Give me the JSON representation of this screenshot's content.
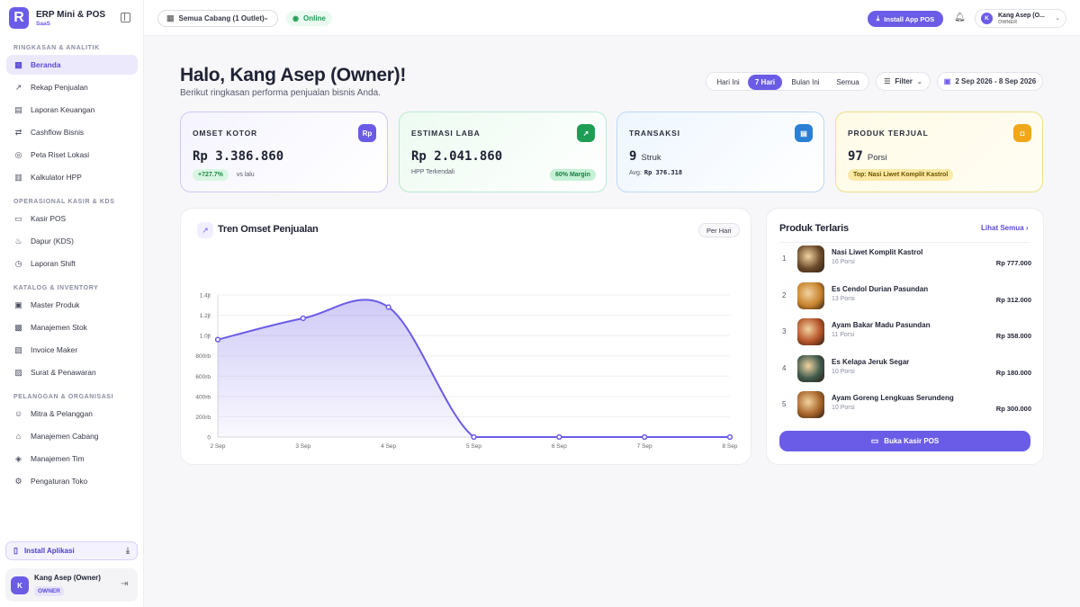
{
  "brand": {
    "name": "ERP Mini & POS",
    "sub": "SaaS",
    "logo_letter": "R"
  },
  "sidebar": {
    "sections": [
      {
        "title": "RINGKASAN & ANALITIK",
        "items": [
          {
            "label": "Beranda",
            "icon": "grid-icon",
            "active": true
          },
          {
            "label": "Rekap Penjualan",
            "icon": "trend-icon"
          },
          {
            "label": "Laporan Keuangan",
            "icon": "file-icon"
          },
          {
            "label": "Cashflow Bisnis",
            "icon": "swap-icon"
          },
          {
            "label": "Peta Riset Lokasi",
            "icon": "pin-icon"
          },
          {
            "label": "Kalkulator HPP",
            "icon": "calculator-icon"
          }
        ]
      },
      {
        "title": "OPERASIONAL KASIR & KDS",
        "items": [
          {
            "label": "Kasir POS",
            "icon": "monitor-icon"
          },
          {
            "label": "Dapur (KDS)",
            "icon": "chef-icon"
          },
          {
            "label": "Laporan Shift",
            "icon": "clock-icon"
          }
        ]
      },
      {
        "title": "KATALOG & INVENTORY",
        "items": [
          {
            "label": "Master Produk",
            "icon": "box-icon"
          },
          {
            "label": "Manajemen Stok",
            "icon": "boxes-icon"
          },
          {
            "label": "Invoice Maker",
            "icon": "invoice-icon"
          },
          {
            "label": "Surat & Penawaran",
            "icon": "document-icon"
          }
        ]
      },
      {
        "title": "PELANGGAN & ORGANISASI",
        "items": [
          {
            "label": "Mitra & Pelanggan",
            "icon": "users-icon"
          },
          {
            "label": "Manajemen Cabang",
            "icon": "branch-icon"
          },
          {
            "label": "Manajemen Tim",
            "icon": "shield-icon"
          },
          {
            "label": "Pengaturan Toko",
            "icon": "gear-icon"
          }
        ]
      }
    ],
    "install_label": "Install Aplikasi",
    "user": {
      "initial": "K",
      "name": "Kang Asep (Owner)",
      "role": "OWNER"
    }
  },
  "topbar": {
    "branch": "Semua Cabang (1 Outlet)",
    "status": "Online",
    "install_pos": "Install App POS",
    "user": {
      "initial": "K",
      "name": "Kang Asep (O...",
      "role": "OWNER"
    }
  },
  "greeting": {
    "title": "Halo, Kang Asep (Owner)!",
    "subtitle": "Berikut ringkasan performa penjualan bisnis Anda."
  },
  "range_tabs": [
    {
      "label": "Hari Ini",
      "active": false
    },
    {
      "label": "7 Hari",
      "active": true
    },
    {
      "label": "Bulan Ini",
      "active": false
    },
    {
      "label": "Semua",
      "active": false
    }
  ],
  "filter_label": "Filter",
  "date_range": "2 Sep 2026 - 8 Sep 2026",
  "kpis": {
    "omset": {
      "label": "OMSET KOTOR",
      "icon_text": "Rp",
      "value": "Rp 3.386.860",
      "change": "+727.7%",
      "change_note": "vs lalu"
    },
    "laba": {
      "label": "ESTIMASI LABA",
      "value": "Rp 2.041.860",
      "note": "HPP Terkendali",
      "margin": "60% Margin"
    },
    "transaksi": {
      "label": "TRANSAKSI",
      "value": "9",
      "unit": "Struk",
      "avg_label": "Avg:",
      "avg_value": "Rp 376.318"
    },
    "produk": {
      "label": "PRODUK TERJUAL",
      "value": "97",
      "unit": "Porsi",
      "top": "Top: Nasi Liwet Komplit Kastrol"
    }
  },
  "chart": {
    "title": "Tren Omset Penjualan",
    "period": "Per Hari",
    "accent": "#6b5ce7"
  },
  "chart_data": {
    "type": "area",
    "title": "Tren Omset Penjualan",
    "x": [
      "2 Sep",
      "3 Sep",
      "4 Sep",
      "5 Sep",
      "6 Sep",
      "7 Sep",
      "8 Sep"
    ],
    "y_ticks": [
      "0",
      "200rb",
      "400rb",
      "600rb",
      "800rb",
      "1.0jt",
      "1.2jt",
      "1.4jt"
    ],
    "ylim": [
      0,
      1400000
    ],
    "series": [
      {
        "values": [
          960000,
          1170000,
          1280000,
          0,
          0,
          0,
          0
        ]
      }
    ],
    "grid": true
  },
  "products": {
    "title": "Produk Terlaris",
    "see_all": "Lihat Semua",
    "items": [
      {
        "rank": "1",
        "name": "Nasi Liwet Komplit Kastrol",
        "qty": "16 Porsi",
        "price": "Rp 777.000",
        "color": "#6b4a2a"
      },
      {
        "rank": "2",
        "name": "Es Cendol Durian Pasundan",
        "qty": "13 Porsi",
        "price": "Rp 312.000",
        "color": "#c8832e"
      },
      {
        "rank": "3",
        "name": "Ayam Bakar Madu Pasundan",
        "qty": "11 Porsi",
        "price": "Rp 358.000",
        "color": "#b5542a"
      },
      {
        "rank": "4",
        "name": "Es Kelapa Jeruk Segar",
        "qty": "10 Porsi",
        "price": "Rp 180.000",
        "color": "#3f5a4c"
      },
      {
        "rank": "5",
        "name": "Ayam Goreng Lengkuas Serundeng",
        "qty": "10 Porsi",
        "price": "Rp 300.000",
        "color": "#a8652a"
      }
    ],
    "cta": "Buka Kasir POS"
  }
}
